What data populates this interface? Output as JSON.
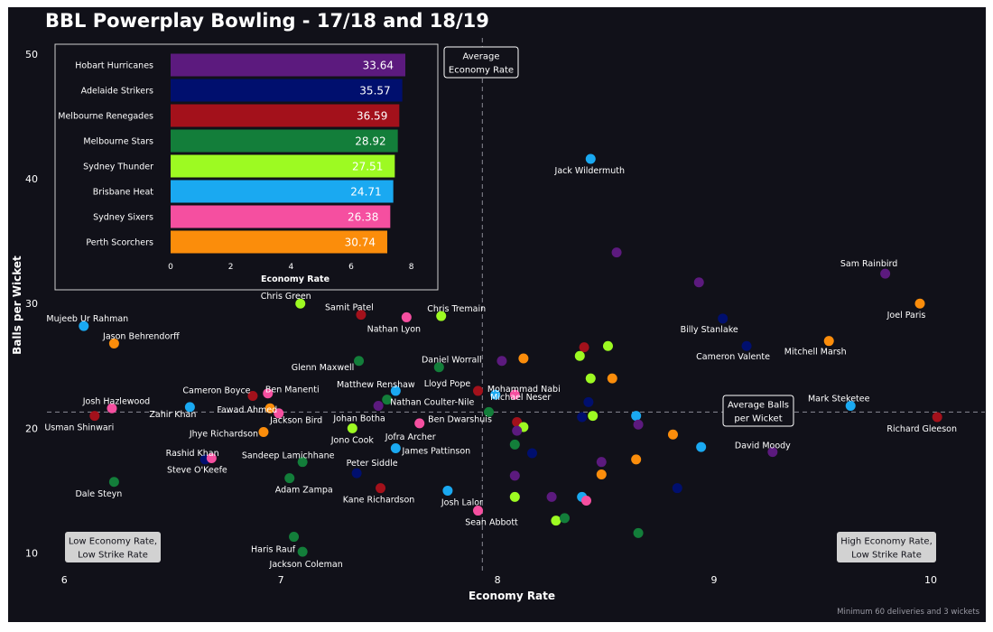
{
  "chart_data": {
    "type": "scatter",
    "title": "BBL Powerplay Bowling - 17/18 and 18/19",
    "xlabel": "Economy Rate",
    "ylabel": "Balls per Wicket",
    "xlim": [
      5.92,
      10.25
    ],
    "ylim": [
      8.3,
      51.3
    ],
    "xticks": [
      "6",
      "7",
      "8",
      "9",
      "10"
    ],
    "yticks": [
      "10",
      "20",
      "30",
      "40",
      "50"
    ],
    "xtick_values": [
      6,
      7,
      8,
      9,
      10
    ],
    "ytick_values": [
      10,
      20,
      30,
      40,
      50
    ],
    "avg_economy": 7.93,
    "avg_balls_per_wicket": 21.3,
    "footnote": "Minimum 60 deliveries and 3 wickets",
    "grid": false,
    "annotations": {
      "avg_economy_label": [
        "Average",
        "Economy Rate"
      ],
      "avg_bpw_label": [
        "Average Balls",
        "per Wicket"
      ],
      "low_low_label": [
        "Low Economy Rate,",
        "Low Strike Rate"
      ],
      "high_low_label": [
        "High Economy Rate,",
        "Low Strike Rate"
      ]
    },
    "team_colors": {
      "Hobart Hurricanes": "#5c1a7e",
      "Adelaide Strikers": "#000f6e",
      "Melbourne Renegades": "#a3111b",
      "Melbourne Stars": "#137e3a",
      "Sydney Thunder": "#9dfa22",
      "Brisbane Heat": "#1aa9f1",
      "Sydney Sixers": "#f54fa0",
      "Perth Scorchers": "#fb8d0b"
    },
    "points": [
      {
        "name": "Jack Wildermuth",
        "team": "Brisbane Heat",
        "x": 8.43,
        "y": 41.6
      },
      {
        "name": "Sam Rainbird",
        "team": "Hobart Hurricanes",
        "x": 9.79,
        "y": 32.4
      },
      {
        "name": "Joel Paris",
        "team": "Perth Scorchers",
        "x": 9.95,
        "y": 30.0
      },
      {
        "name": "Chris Green",
        "team": "Sydney Thunder",
        "x": 7.09,
        "y": 30.0
      },
      {
        "name": "Samit Patel",
        "team": "Melbourne Renegades",
        "x": 7.37,
        "y": 29.1
      },
      {
        "name": "Nathan Lyon",
        "team": "Sydney Sixers",
        "x": 7.58,
        "y": 28.9
      },
      {
        "name": "Chris Tremain",
        "team": "Sydney Thunder",
        "x": 7.74,
        "y": 29.0
      },
      {
        "name": "Mujeeb Ur Rahman",
        "team": "Brisbane Heat",
        "x": 6.09,
        "y": 28.2
      },
      {
        "name": "Jason Behrendorff",
        "team": "Perth Scorchers",
        "x": 6.23,
        "y": 26.8
      },
      {
        "name": "Billy Stanlake",
        "team": "Adelaide Strikers",
        "x": 9.04,
        "y": 28.8
      },
      {
        "name": "Mitchell Marsh",
        "team": "Perth Scorchers",
        "x": 9.53,
        "y": 27.0
      },
      {
        "name": "Cameron Valente",
        "team": "Adelaide Strikers",
        "x": 9.15,
        "y": 26.6
      },
      {
        "name": "Glenn Maxwell",
        "team": "Melbourne Stars",
        "x": 7.36,
        "y": 25.4
      },
      {
        "name": "Daniel Worrall",
        "team": "Melbourne Stars",
        "x": 7.73,
        "y": 24.9
      },
      {
        "name": "Matthew Renshaw",
        "team": "Brisbane Heat",
        "x": 7.53,
        "y": 23.0
      },
      {
        "name": "Lloyd Pope",
        "team": "Melbourne Renegades",
        "x": 7.91,
        "y": 23.0
      },
      {
        "name": "Mohammad Nabi",
        "team": "Sydney Sixers",
        "x": 8.08,
        "y": 22.7
      },
      {
        "name": "Cameron Boyce",
        "team": "Melbourne Renegades",
        "x": 6.87,
        "y": 22.6
      },
      {
        "name": "Ben Manenti",
        "team": "Sydney Sixers",
        "x": 6.94,
        "y": 22.8
      },
      {
        "name": "Nathan Coulter-Nile",
        "team": "Melbourne Stars",
        "x": 7.49,
        "y": 22.3
      },
      {
        "name": "Michael Neser",
        "team": "Brisbane Heat",
        "x": 7.99,
        "y": 22.7
      },
      {
        "name": "Josh Hazlewood",
        "team": "Sydney Sixers",
        "x": 6.22,
        "y": 21.6
      },
      {
        "name": "Fawad Ahmed",
        "team": "Sydney Sixers",
        "x": 6.99,
        "y": 21.2
      },
      {
        "name": "Zahir Khan",
        "team": "Brisbane Heat",
        "x": 6.58,
        "y": 21.7
      },
      {
        "name": "Mark Steketee",
        "team": "Brisbane Heat",
        "x": 9.63,
        "y": 21.8
      },
      {
        "name": "Usman Shinwari",
        "team": "Melbourne Renegades",
        "x": 6.14,
        "y": 21.0
      },
      {
        "name": "Richard Gleeson",
        "team": "Melbourne Renegades",
        "x": 10.03,
        "y": 20.9
      },
      {
        "name": "Jackson Bird",
        "team": "Perth Scorchers",
        "x": 6.95,
        "y": 21.6
      },
      {
        "name": "Johan Botha",
        "team": "Hobart Hurricanes",
        "x": 7.45,
        "y": 21.8
      },
      {
        "name": "Ben Dwarshuis",
        "team": "Melbourne Stars",
        "x": 7.96,
        "y": 21.3
      },
      {
        "name": "Jhye Richardson",
        "team": "Perth Scorchers",
        "x": 6.92,
        "y": 19.7
      },
      {
        "name": "Jono Cook",
        "team": "Sydney Thunder",
        "x": 7.33,
        "y": 20.0
      },
      {
        "name": "Jofra Archer",
        "team": "Sydney Sixers",
        "x": 7.64,
        "y": 20.4
      },
      {
        "name": "David Moody",
        "team": "Hobart Hurricanes",
        "x": 9.27,
        "y": 18.1
      },
      {
        "name": "Rashid Khan",
        "team": "Adelaide Strikers",
        "x": 6.65,
        "y": 17.5
      },
      {
        "name": "Steve O'Keefe",
        "team": "Sydney Sixers",
        "x": 6.68,
        "y": 17.6
      },
      {
        "name": "Sandeep Lamichhane",
        "team": "Melbourne Stars",
        "x": 7.1,
        "y": 17.3
      },
      {
        "name": "James Pattinson",
        "team": "Brisbane Heat",
        "x": 7.53,
        "y": 18.4
      },
      {
        "name": "Peter Siddle",
        "team": "Adelaide Strikers",
        "x": 7.35,
        "y": 16.4
      },
      {
        "name": "Dale Steyn",
        "team": "Melbourne Stars",
        "x": 6.23,
        "y": 15.7
      },
      {
        "name": "Adam Zampa",
        "team": "Melbourne Stars",
        "x": 7.04,
        "y": 16.0
      },
      {
        "name": "Kane Richardson",
        "team": "Melbourne Renegades",
        "x": 7.46,
        "y": 15.2
      },
      {
        "name": "Josh Lalor",
        "team": "Brisbane Heat",
        "x": 7.77,
        "y": 15.0
      },
      {
        "name": "Sean Abbott",
        "team": "Sydney Sixers",
        "x": 7.91,
        "y": 13.4
      },
      {
        "name": "Haris Rauf",
        "team": "Melbourne Stars",
        "x": 7.06,
        "y": 11.3
      },
      {
        "name": "Jackson Coleman",
        "team": "Melbourne Stars",
        "x": 7.1,
        "y": 10.1
      },
      {
        "name": "",
        "team": "Hobart Hurricanes",
        "x": 8.55,
        "y": 34.1
      },
      {
        "name": "",
        "team": "Hobart Hurricanes",
        "x": 8.93,
        "y": 31.7
      },
      {
        "name": "",
        "team": "Melbourne Renegades",
        "x": 8.4,
        "y": 26.5
      },
      {
        "name": "",
        "team": "Sydney Thunder",
        "x": 8.51,
        "y": 26.6
      },
      {
        "name": "",
        "team": "Sydney Thunder",
        "x": 8.38,
        "y": 25.8
      },
      {
        "name": "",
        "team": "Perth Scorchers",
        "x": 8.12,
        "y": 25.6
      },
      {
        "name": "",
        "team": "Hobart Hurricanes",
        "x": 8.02,
        "y": 25.4
      },
      {
        "name": "",
        "team": "Sydney Thunder",
        "x": 8.43,
        "y": 24.0
      },
      {
        "name": "",
        "team": "Perth Scorchers",
        "x": 8.53,
        "y": 24.0
      },
      {
        "name": "",
        "team": "Adelaide Strikers",
        "x": 8.42,
        "y": 22.1
      },
      {
        "name": "",
        "team": "Brisbane Heat",
        "x": 8.64,
        "y": 21.0
      },
      {
        "name": "",
        "team": "Sydney Thunder",
        "x": 8.44,
        "y": 21.0
      },
      {
        "name": "",
        "team": "Adelaide Strikers",
        "x": 8.39,
        "y": 20.9
      },
      {
        "name": "",
        "team": "Melbourne Renegades",
        "x": 8.09,
        "y": 20.5
      },
      {
        "name": "",
        "team": "Sydney Thunder",
        "x": 8.12,
        "y": 20.1
      },
      {
        "name": "",
        "team": "Hobart Hurricanes",
        "x": 8.09,
        "y": 19.8
      },
      {
        "name": "",
        "team": "Hobart Hurricanes",
        "x": 8.65,
        "y": 20.3
      },
      {
        "name": "",
        "team": "Perth Scorchers",
        "x": 8.81,
        "y": 19.5
      },
      {
        "name": "",
        "team": "Brisbane Heat",
        "x": 8.94,
        "y": 18.5
      },
      {
        "name": "",
        "team": "Melbourne Stars",
        "x": 8.08,
        "y": 18.7
      },
      {
        "name": "",
        "team": "Adelaide Strikers",
        "x": 8.16,
        "y": 18.0
      },
      {
        "name": "",
        "team": "Hobart Hurricanes",
        "x": 8.48,
        "y": 17.3
      },
      {
        "name": "",
        "team": "Perth Scorchers",
        "x": 8.64,
        "y": 17.5
      },
      {
        "name": "",
        "team": "Perth Scorchers",
        "x": 8.48,
        "y": 16.3
      },
      {
        "name": "",
        "team": "Hobart Hurricanes",
        "x": 8.08,
        "y": 16.2
      },
      {
        "name": "",
        "team": "Adelaide Strikers",
        "x": 8.83,
        "y": 15.2
      },
      {
        "name": "",
        "team": "Sydney Thunder",
        "x": 8.08,
        "y": 14.5
      },
      {
        "name": "",
        "team": "Hobart Hurricanes",
        "x": 8.25,
        "y": 14.5
      },
      {
        "name": "",
        "team": "Brisbane Heat",
        "x": 8.39,
        "y": 14.5
      },
      {
        "name": "",
        "team": "Sydney Sixers",
        "x": 8.41,
        "y": 14.2
      },
      {
        "name": "",
        "team": "Sydney Thunder",
        "x": 8.27,
        "y": 12.6
      },
      {
        "name": "",
        "team": "Melbourne Stars",
        "x": 8.31,
        "y": 12.8
      },
      {
        "name": "",
        "team": "Melbourne Stars",
        "x": 8.65,
        "y": 11.6
      }
    ],
    "inset": {
      "type": "bar",
      "orientation": "horizontal",
      "xlabel": "Economy Rate",
      "xticks": [
        "0",
        "2",
        "4",
        "6",
        "8"
      ],
      "xtick_values": [
        0,
        2,
        4,
        6,
        8
      ],
      "xlim": [
        0,
        8.4
      ],
      "categories": [
        "Hobart Hurricanes",
        "Adelaide Strikers",
        "Melbourne Renegades",
        "Melbourne Stars",
        "Sydney Thunder",
        "Brisbane Heat",
        "Sydney Sixers",
        "Perth Scorchers"
      ],
      "values": [
        7.8,
        7.7,
        7.6,
        7.55,
        7.45,
        7.4,
        7.3,
        7.2
      ],
      "bar_labels": [
        "33.64",
        "35.57",
        "36.59",
        "28.92",
        "27.51",
        "24.71",
        "26.38",
        "30.74"
      ]
    }
  }
}
